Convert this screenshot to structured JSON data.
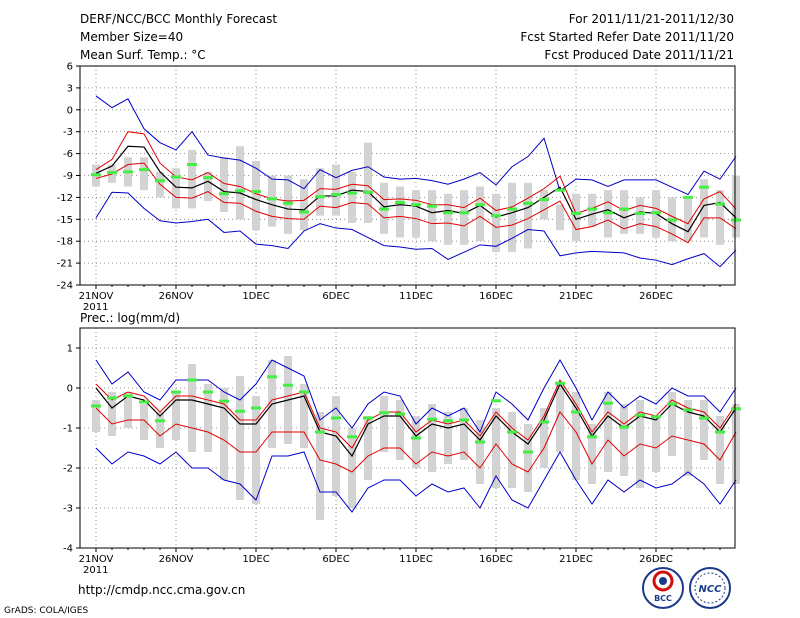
{
  "header": {
    "title": "DERF/NCC/BCC Monthly Forecast",
    "member_size": "Member Size=40",
    "range": "For 2011/11/21-2011/12/30",
    "started": "Fcst Started Refer Date 2011/11/20",
    "produced": "Fcst Produced Date 2011/11/21"
  },
  "footer": {
    "url": "http://cmdp.ncc.cma.gov.cn",
    "grads": "GrADS: COLA/IGES",
    "logo_bcc": "BCC",
    "logo_ncc": "NCC"
  },
  "colors": {
    "box": "#d3d3d3",
    "mean": "#000000",
    "red": "#e00000",
    "blue": "#0000c8",
    "green": "#44ee44"
  },
  "chart_data": [
    {
      "type": "line",
      "title": "Mean Surf. Temp.: °C",
      "ylim": [
        -24,
        6
      ],
      "yticks": [
        6,
        3,
        0,
        -3,
        -6,
        -9,
        -12,
        -15,
        -18,
        -21,
        -24
      ],
      "xticks": [
        {
          "day": 0,
          "label": "21NOV",
          "sub": "2011"
        },
        {
          "day": 5,
          "label": "26NOV"
        },
        {
          "day": 10,
          "label": "1DEC"
        },
        {
          "day": 15,
          "label": "6DEC"
        },
        {
          "day": 20,
          "label": "11DEC"
        },
        {
          "day": 25,
          "label": "16DEC"
        },
        {
          "day": 30,
          "label": "21DEC"
        },
        {
          "day": 35,
          "label": "26DEC"
        }
      ],
      "series": [
        {
          "name": "ensemble mean",
          "role": "mean",
          "values": [
            -8.7,
            -7.7,
            -5,
            -5.1,
            -8.5,
            -10.6,
            -10.7,
            -9.8,
            -11.2,
            -11.4,
            -12.3,
            -13,
            -13.6,
            -13.7,
            -11.8,
            -11.8,
            -11,
            -11.2,
            -13.3,
            -13,
            -13.2,
            -14.1,
            -13.8,
            -14.2,
            -13.1,
            -14.7,
            -14.1,
            -13.4,
            -12,
            -10.6,
            -15,
            -14.3,
            -13.7,
            -14.8,
            -14,
            -14.2,
            -15.6,
            -16.7,
            -13.1,
            -12.7,
            -14.8
          ]
        },
        {
          "name": "mean + 1 std",
          "role": "red",
          "values": [
            -8.2,
            -6.8,
            -3,
            -3.3,
            -7.3,
            -9.2,
            -9.6,
            -8.6,
            -10.1,
            -10.5,
            -11.5,
            -12.2,
            -12.5,
            -12.4,
            -10.8,
            -10.9,
            -10.2,
            -10.4,
            -12.3,
            -12.2,
            -12.4,
            -13,
            -13,
            -13.4,
            -12.1,
            -13.8,
            -13.3,
            -12.1,
            -10.8,
            -9.1,
            -14.2,
            -13.5,
            -12.6,
            -13.8,
            -13.1,
            -13.5,
            -14.6,
            -15.6,
            -12.2,
            -11.2,
            -13.6
          ]
        },
        {
          "name": "mean - 1 std",
          "role": "red",
          "values": [
            -9.4,
            -8.8,
            -7.5,
            -7.3,
            -10.2,
            -12,
            -12.1,
            -11.2,
            -12.7,
            -12.8,
            -13.9,
            -14.6,
            -14.9,
            -15,
            -13.2,
            -13.4,
            -12.7,
            -12.9,
            -14.8,
            -14.6,
            -14.9,
            -15.6,
            -15.5,
            -15.9,
            -14.6,
            -16.1,
            -15.8,
            -14.9,
            -13.7,
            -12.5,
            -16.4,
            -16,
            -15.1,
            -16.3,
            -15.6,
            -16,
            -17,
            -18.2,
            -14.8,
            -14.8,
            -16.3
          ]
        },
        {
          "name": "ensemble max",
          "role": "blue",
          "values": [
            1.9,
            0.3,
            1.5,
            -2.6,
            -4.5,
            -5.5,
            -3,
            -6.2,
            -6.6,
            -6.9,
            -8,
            -9.5,
            -9.6,
            -10.8,
            -8.2,
            -9.3,
            -8.3,
            -7.8,
            -9.2,
            -9.5,
            -9.4,
            -9.7,
            -10.2,
            -9.5,
            -8.6,
            -10.3,
            -7.8,
            -6.4,
            -3.9,
            -11.1,
            -9.5,
            -9.6,
            -10.5,
            -9.6,
            -9.6,
            -9.6,
            -10.6,
            -11.6,
            -8.4,
            -9.5,
            -6.4
          ]
        },
        {
          "name": "ensemble min",
          "role": "blue",
          "values": [
            -14.8,
            -11.3,
            -11.4,
            -13.5,
            -15.2,
            -15.5,
            -15.3,
            -15,
            -16.8,
            -16.6,
            -18.4,
            -18.6,
            -19,
            -16.6,
            -15.6,
            -16.2,
            -16.4,
            -17.5,
            -18.6,
            -18.8,
            -19.1,
            -19,
            -20.5,
            -19.5,
            -18.5,
            -18.7,
            -17.6,
            -16.4,
            -16.6,
            -20,
            -19.6,
            -19.4,
            -19.5,
            -19.6,
            -20.3,
            -20.6,
            -21.2,
            -20.4,
            -19.7,
            -21.5,
            -19.2
          ]
        },
        {
          "name": "box top",
          "role": "box_top",
          "values": [
            -7.5,
            -7.5,
            -6.5,
            -6.5,
            -8.5,
            -8.0,
            -5.5,
            -8.5,
            -6.5,
            -5.0,
            -7.0,
            -9.0,
            -9.0,
            -9.5,
            -8.0,
            -7.5,
            -8.5,
            -4.5,
            -10.0,
            -10.5,
            -11.0,
            -11.0,
            -11.5,
            -11.0,
            -10.5,
            -11.5,
            -10.0,
            -10.0,
            -11.0,
            -13.0,
            -11.5,
            -11.5,
            -11.0,
            -11.0,
            -12.0,
            -11.0,
            -12.0,
            -12.0,
            -9.5,
            -11.0,
            -9.0
          ]
        },
        {
          "name": "box bottom",
          "role": "box_bottom",
          "values": [
            -10.5,
            -10.0,
            -10.5,
            -11.0,
            -12.0,
            -13.5,
            -13.5,
            -12.5,
            -14.0,
            -15.0,
            -16.5,
            -16.0,
            -17.0,
            -16.5,
            -14.5,
            -14.5,
            -15.5,
            -15.5,
            -17.0,
            -17.5,
            -17.5,
            -18.0,
            -18.5,
            -18.5,
            -18.0,
            -19.5,
            -19.5,
            -19.0,
            -15.0,
            -16.5,
            -18.0,
            -16.0,
            -17.5,
            -17.0,
            -17.0,
            -17.5,
            -18.0,
            -18.0,
            -17.5,
            -18.5,
            -17.5
          ]
        },
        {
          "name": "observed / median",
          "role": "green",
          "values": [
            -8.9,
            -8.6,
            -8.5,
            -8.2,
            -9.7,
            -9.2,
            -7.5,
            -9.3,
            -11.5,
            -11.1,
            -11.2,
            -12.2,
            -12.8,
            -14.0,
            -11.9,
            -11.6,
            -11.4,
            -11.3,
            -13.6,
            -12.7,
            -13.0,
            -13.2,
            -14.1,
            -14.1,
            -13.0,
            -14.5,
            -13.6,
            -12.8,
            -12.3,
            -11.0,
            -14.2,
            -13.6,
            -14.1,
            -13.6,
            -14.2,
            -14.1,
            -15.1,
            -12.0,
            -10.6,
            -12.9,
            -15.1
          ]
        }
      ]
    },
    {
      "type": "line",
      "title": "Prec.: log(mm/d)",
      "ylim": [
        -4,
        1.5
      ],
      "yticks": [
        1,
        0,
        -1,
        -2,
        -3,
        -4
      ],
      "xticks": [
        {
          "day": 0,
          "label": "21NOV",
          "sub": "2011"
        },
        {
          "day": 5,
          "label": "26NOV"
        },
        {
          "day": 10,
          "label": "1DEC"
        },
        {
          "day": 15,
          "label": "6DEC"
        },
        {
          "day": 20,
          "label": "11DEC"
        },
        {
          "day": 25,
          "label": "16DEC"
        },
        {
          "day": 30,
          "label": "21DEC"
        },
        {
          "day": 35,
          "label": "26DEC"
        }
      ],
      "series": [
        {
          "name": "ensemble mean",
          "role": "mean",
          "values": [
            0,
            -0.5,
            -0.2,
            -0.3,
            -0.7,
            -0.3,
            -0.3,
            -0.4,
            -0.5,
            -0.9,
            -0.9,
            -0.4,
            -0.3,
            -0.2,
            -1.1,
            -1.2,
            -1.7,
            -0.9,
            -0.7,
            -0.7,
            -1.2,
            -0.9,
            -1.0,
            -0.9,
            -1.3,
            -0.7,
            -1.1,
            -1.4,
            -0.8,
            0.1,
            -0.5,
            -1.2,
            -0.7,
            -1.0,
            -0.7,
            -0.8,
            -0.4,
            -0.6,
            -0.7,
            -1.1,
            -0.5
          ]
        },
        {
          "name": "mean + 1 std",
          "role": "red",
          "values": [
            0.1,
            -0.3,
            -0.1,
            -0.2,
            -0.6,
            -0.2,
            -0.2,
            -0.3,
            -0.4,
            -0.8,
            -0.8,
            -0.3,
            -0.2,
            -0.1,
            -1.0,
            -1.1,
            -1.5,
            -0.8,
            -0.6,
            -0.6,
            -1.1,
            -0.8,
            -0.9,
            -0.8,
            -1.2,
            -0.6,
            -1.0,
            -1.3,
            -0.7,
            0.2,
            -0.4,
            -1.1,
            -0.6,
            -0.9,
            -0.6,
            -0.7,
            -0.3,
            -0.5,
            -0.6,
            -1.0,
            -0.4
          ]
        },
        {
          "name": "mean - 1 std",
          "role": "red",
          "values": [
            -0.5,
            -0.9,
            -0.8,
            -0.8,
            -1.2,
            -0.9,
            -1.0,
            -1.1,
            -1.3,
            -1.6,
            -1.6,
            -1.1,
            -1.1,
            -1.1,
            -1.8,
            -1.9,
            -2.1,
            -1.7,
            -1.5,
            -1.5,
            -1.9,
            -1.6,
            -1.7,
            -1.6,
            -2.0,
            -1.4,
            -1.9,
            -2.1,
            -1.5,
            -0.6,
            -1.1,
            -1.9,
            -1.3,
            -1.7,
            -1.4,
            -1.5,
            -1.2,
            -1.3,
            -1.4,
            -1.8,
            -1.1
          ]
        },
        {
          "name": "ensemble max",
          "role": "blue",
          "values": [
            0.7,
            0.1,
            0.4,
            -0.1,
            -0.3,
            0.2,
            0.2,
            0.2,
            -0.1,
            -0.3,
            0.1,
            0.7,
            0.5,
            0.3,
            -0.8,
            -0.5,
            -1.0,
            -0.4,
            -0.1,
            -0.2,
            -0.9,
            -0.5,
            -0.7,
            -0.5,
            -1.1,
            -0.1,
            -0.4,
            -0.8,
            0.0,
            0.7,
            0.0,
            -0.8,
            -0.1,
            -0.5,
            -0.2,
            -0.4,
            0.0,
            -0.2,
            -0.2,
            -0.6,
            0.0
          ]
        },
        {
          "name": "ensemble min",
          "role": "blue",
          "values": [
            -1.5,
            -1.9,
            -1.6,
            -1.7,
            -1.9,
            -1.6,
            -2.0,
            -2.0,
            -2.3,
            -2.4,
            -2.8,
            -1.7,
            -1.7,
            -1.6,
            -2.6,
            -2.6,
            -3.1,
            -2.5,
            -2.3,
            -2.3,
            -2.7,
            -2.4,
            -2.6,
            -2.5,
            -3.0,
            -2.2,
            -2.8,
            -3.0,
            -2.3,
            -1.6,
            -2.3,
            -2.9,
            -2.3,
            -2.6,
            -2.3,
            -2.5,
            -2.4,
            -2.1,
            -2.4,
            -2.9,
            -2.3
          ]
        },
        {
          "name": "box top",
          "role": "box_top",
          "values": [
            -0.3,
            -0.1,
            -0.1,
            -0.4,
            -0.6,
            -0.1,
            0.6,
            0.1,
            0.0,
            0.3,
            -0.2,
            0.7,
            0.8,
            0.1,
            -0.6,
            -0.2,
            -1.0,
            -0.7,
            -0.2,
            -0.3,
            -0.7,
            -0.4,
            -0.6,
            -0.5,
            -0.8,
            -0.5,
            -0.6,
            -0.9,
            -0.5,
            0.1,
            -0.1,
            -0.9,
            -0.1,
            -0.4,
            -0.3,
            -0.7,
            -0.1,
            -0.3,
            -0.3,
            -0.7,
            -0.4
          ]
        },
        {
          "name": "box bottom",
          "role": "box_bottom",
          "values": [
            -1.1,
            -1.2,
            -1.0,
            -1.3,
            -1.5,
            -1.3,
            -1.6,
            -1.6,
            -2.3,
            -2.8,
            -2.9,
            -1.5,
            -1.4,
            -1.5,
            -3.3,
            -2.7,
            -3.0,
            -2.3,
            -1.6,
            -1.8,
            -2.0,
            -2.1,
            -1.9,
            -1.8,
            -2.4,
            -2.5,
            -2.5,
            -2.6,
            -2.0,
            -1.6,
            -2.3,
            -2.4,
            -2.1,
            -2.2,
            -2.5,
            -2.1,
            -1.7,
            -2.2,
            -1.8,
            -2.4,
            -2.4
          ]
        },
        {
          "name": "observed / median",
          "role": "green",
          "values": [
            -0.45,
            -0.25,
            -0.2,
            -0.35,
            -0.82,
            -0.1,
            0.2,
            -0.1,
            -0.33,
            -0.58,
            -0.5,
            0.28,
            0.07,
            -0.1,
            -1.1,
            -0.75,
            -1.22,
            -0.75,
            -0.62,
            -0.65,
            -1.25,
            -0.78,
            -0.82,
            -0.8,
            -1.35,
            -0.32,
            -1.1,
            -1.6,
            -0.85,
            0.12,
            -0.6,
            -1.22,
            -0.38,
            -0.98,
            -0.68,
            -0.72,
            -0.4,
            -0.55,
            -0.75,
            -1.1,
            -0.52
          ]
        }
      ]
    }
  ]
}
